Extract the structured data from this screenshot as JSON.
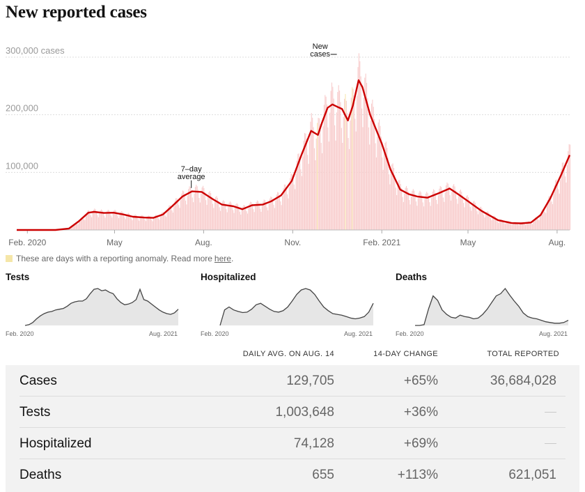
{
  "title": "New reported cases",
  "chart_data": {
    "type": "bar",
    "title": "New reported cases",
    "y_unit_label": "300,000 cases",
    "yticks": [
      {
        "value": 300000,
        "label": "300,000 cases"
      },
      {
        "value": 200000,
        "label": "200,000"
      },
      {
        "value": 100000,
        "label": "100,000"
      }
    ],
    "ylim": [
      0,
      300000
    ],
    "x_range": [
      "2020-01-21",
      "2021-08-14"
    ],
    "xticks": [
      {
        "date": "2020-02-01",
        "label": "Feb. 2020"
      },
      {
        "date": "2020-05-01",
        "label": "May"
      },
      {
        "date": "2020-08-01",
        "label": "Aug."
      },
      {
        "date": "2020-11-01",
        "label": "Nov."
      },
      {
        "date": "2021-02-01",
        "label": "Feb. 2021"
      },
      {
        "date": "2021-05-01",
        "label": "May"
      },
      {
        "date": "2021-08-01",
        "label": "Aug."
      }
    ],
    "grid": true,
    "annotations": [
      {
        "text_lines": [
          "7–day",
          "average"
        ],
        "date": "2020-07-20",
        "value": 68000
      },
      {
        "text_lines": [
          "New",
          "cases"
        ],
        "date": "2020-12-18",
        "value": 300000
      }
    ],
    "series": [
      {
        "name": "7-day average",
        "kind": "line",
        "color": "#cc0000",
        "points": [
          [
            "2020-01-21",
            0
          ],
          [
            "2020-03-01",
            10
          ],
          [
            "2020-03-15",
            2500
          ],
          [
            "2020-03-25",
            15000
          ],
          [
            "2020-04-04",
            30000
          ],
          [
            "2020-04-10",
            31500
          ],
          [
            "2020-04-20",
            29500
          ],
          [
            "2020-04-30",
            30000
          ],
          [
            "2020-05-10",
            27000
          ],
          [
            "2020-05-20",
            23000
          ],
          [
            "2020-06-01",
            21500
          ],
          [
            "2020-06-10",
            21000
          ],
          [
            "2020-06-20",
            27000
          ],
          [
            "2020-06-30",
            42000
          ],
          [
            "2020-07-10",
            58000
          ],
          [
            "2020-07-20",
            67000
          ],
          [
            "2020-07-30",
            66000
          ],
          [
            "2020-08-10",
            54000
          ],
          [
            "2020-08-20",
            44000
          ],
          [
            "2020-09-01",
            41000
          ],
          [
            "2020-09-10",
            36000
          ],
          [
            "2020-09-20",
            43000
          ],
          [
            "2020-10-01",
            44000
          ],
          [
            "2020-10-10",
            50000
          ],
          [
            "2020-10-20",
            60000
          ],
          [
            "2020-10-31",
            85000
          ],
          [
            "2020-11-10",
            130000
          ],
          [
            "2020-11-20",
            172000
          ],
          [
            "2020-11-27",
            165000
          ],
          [
            "2020-12-01",
            185000
          ],
          [
            "2020-12-07",
            212000
          ],
          [
            "2020-12-12",
            218000
          ],
          [
            "2020-12-18",
            213000
          ],
          [
            "2020-12-22",
            210000
          ],
          [
            "2020-12-28",
            190000
          ],
          [
            "2021-01-02",
            215000
          ],
          [
            "2021-01-08",
            260000
          ],
          [
            "2021-01-12",
            248000
          ],
          [
            "2021-01-20",
            200000
          ],
          [
            "2021-02-01",
            150000
          ],
          [
            "2021-02-10",
            105000
          ],
          [
            "2021-02-20",
            70000
          ],
          [
            "2021-03-01",
            62000
          ],
          [
            "2021-03-10",
            58000
          ],
          [
            "2021-03-20",
            56000
          ],
          [
            "2021-04-01",
            64000
          ],
          [
            "2021-04-12",
            72000
          ],
          [
            "2021-04-20",
            63000
          ],
          [
            "2021-05-01",
            50000
          ],
          [
            "2021-05-15",
            33000
          ],
          [
            "2021-06-01",
            17000
          ],
          [
            "2021-06-15",
            12000
          ],
          [
            "2021-06-25",
            11500
          ],
          [
            "2021-07-05",
            13000
          ],
          [
            "2021-07-15",
            26000
          ],
          [
            "2021-07-25",
            55000
          ],
          [
            "2021-08-05",
            95000
          ],
          [
            "2021-08-14",
            130000
          ]
        ]
      }
    ],
    "anomaly_days": [
      "2020-11-26",
      "2020-12-25",
      "2021-01-01"
    ]
  },
  "anomaly_note": {
    "text": "These are days with a reporting anomaly. Read more",
    "link": "here",
    "end": ".",
    "swatch_color": "#f5e6a8"
  },
  "small_charts": [
    {
      "title": "Tests",
      "x_start": "Feb. 2020",
      "x_end": "Aug. 2021",
      "values": [
        0,
        0.02,
        0.08,
        0.18,
        0.26,
        0.32,
        0.36,
        0.38,
        0.42,
        0.44,
        0.46,
        0.52,
        0.6,
        0.64,
        0.66,
        0.66,
        0.72,
        0.86,
        0.98,
        1.0,
        0.94,
        0.96,
        0.9,
        0.86,
        0.72,
        0.62,
        0.56,
        0.58,
        0.62,
        0.7,
        0.98,
        0.7,
        0.66,
        0.58,
        0.5,
        0.42,
        0.36,
        0.32,
        0.3,
        0.34,
        0.44
      ]
    },
    {
      "title": "Hospitalized",
      "x_start": "Feb. 2020",
      "x_end": "Aug. 2021",
      "values": [
        0,
        0.42,
        0.5,
        0.42,
        0.38,
        0.35,
        0.36,
        0.44,
        0.56,
        0.6,
        0.52,
        0.44,
        0.38,
        0.36,
        0.4,
        0.5,
        0.66,
        0.84,
        0.96,
        1.0,
        0.96,
        0.84,
        0.66,
        0.5,
        0.4,
        0.32,
        0.3,
        0.28,
        0.24,
        0.2,
        0.18,
        0.2,
        0.24,
        0.36,
        0.6
      ]
    },
    {
      "title": "Deaths",
      "x_start": "Feb. 2020",
      "x_end": "Aug. 2021",
      "values": [
        0,
        0,
        0.02,
        0.45,
        0.8,
        0.68,
        0.42,
        0.3,
        0.22,
        0.2,
        0.28,
        0.24,
        0.22,
        0.18,
        0.2,
        0.3,
        0.44,
        0.62,
        0.8,
        0.86,
        1.0,
        0.82,
        0.66,
        0.52,
        0.34,
        0.24,
        0.2,
        0.18,
        0.14,
        0.1,
        0.08,
        0.06,
        0.06,
        0.08,
        0.14
      ]
    }
  ],
  "table": {
    "headers": [
      "DAILY AVG. ON AUG. 14",
      "14-DAY CHANGE",
      "TOTAL REPORTED"
    ],
    "rows": [
      {
        "label": "Cases",
        "avg": "129,705",
        "change": "+65%",
        "total": "36,684,028"
      },
      {
        "label": "Tests",
        "avg": "1,003,648",
        "change": "+36%",
        "total": ""
      },
      {
        "label": "Hospitalized",
        "avg": "74,128",
        "change": "+69%",
        "total": ""
      },
      {
        "label": "Deaths",
        "avg": "655",
        "change": "+113%",
        "total": "621,051"
      }
    ]
  }
}
